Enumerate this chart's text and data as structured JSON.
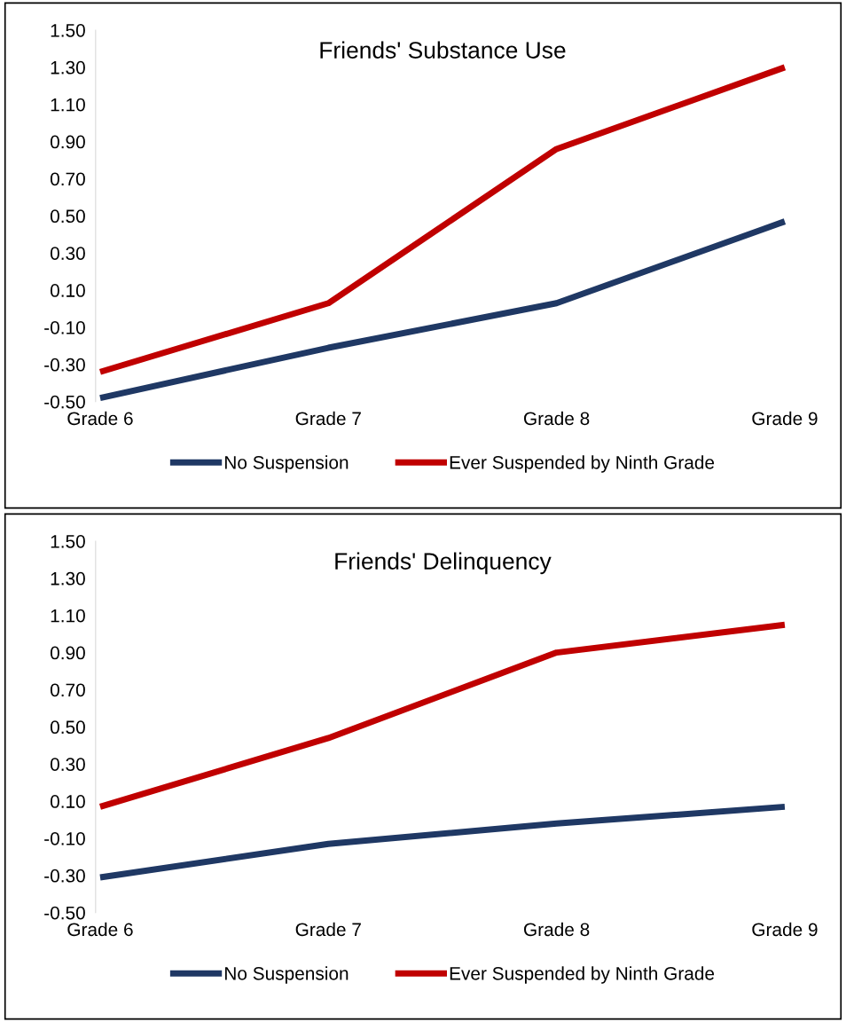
{
  "chart_data": [
    {
      "type": "line",
      "title": "Friends' Substance Use",
      "categories": [
        "Grade 6",
        "Grade 7",
        "Grade 8",
        "Grade 9"
      ],
      "series": [
        {
          "name": "No Suspension",
          "color": "#1f3864",
          "values": [
            -0.48,
            -0.21,
            0.03,
            0.47
          ]
        },
        {
          "name": "Ever Suspended by Ninth Grade",
          "color": "#c00000",
          "values": [
            -0.34,
            0.03,
            0.86,
            1.3
          ]
        }
      ],
      "ylim": [
        -0.5,
        1.5
      ],
      "yticks": [
        {
          "value": -0.5,
          "label": "-0.50"
        },
        {
          "value": -0.3,
          "label": "-0.30"
        },
        {
          "value": -0.1,
          "label": "-0.10"
        },
        {
          "value": 0.1,
          "label": "0.10"
        },
        {
          "value": 0.3,
          "label": "0.30"
        },
        {
          "value": 0.5,
          "label": "0.50"
        },
        {
          "value": 0.7,
          "label": "0.70"
        },
        {
          "value": 0.9,
          "label": "0.90"
        },
        {
          "value": 1.1,
          "label": "1.10"
        },
        {
          "value": 1.3,
          "label": "1.30"
        },
        {
          "value": 1.5,
          "label": "1.50"
        }
      ],
      "legend": "bottom",
      "grid": false,
      "marker": "none",
      "line_style": "solid"
    },
    {
      "type": "line",
      "title": "Friends' Delinquency",
      "categories": [
        "Grade 6",
        "Grade 7",
        "Grade 8",
        "Grade 9"
      ],
      "series": [
        {
          "name": "No Suspension",
          "color": "#1f3864",
          "values": [
            -0.31,
            -0.13,
            -0.02,
            0.07
          ]
        },
        {
          "name": "Ever Suspended by Ninth Grade",
          "color": "#c00000",
          "values": [
            0.07,
            0.44,
            0.9,
            1.05
          ]
        }
      ],
      "ylim": [
        -0.5,
        1.5
      ],
      "yticks": [
        {
          "value": -0.5,
          "label": "-0.50"
        },
        {
          "value": -0.3,
          "label": "-0.30"
        },
        {
          "value": -0.1,
          "label": "-0.10"
        },
        {
          "value": 0.1,
          "label": "0.10"
        },
        {
          "value": 0.3,
          "label": "0.30"
        },
        {
          "value": 0.5,
          "label": "0.50"
        },
        {
          "value": 0.7,
          "label": "0.70"
        },
        {
          "value": 0.9,
          "label": "0.90"
        },
        {
          "value": 1.1,
          "label": "1.10"
        },
        {
          "value": 1.3,
          "label": "1.30"
        },
        {
          "value": 1.5,
          "label": "1.50"
        }
      ],
      "legend": "bottom",
      "grid": false,
      "marker": "none",
      "line_style": "solid"
    }
  ]
}
